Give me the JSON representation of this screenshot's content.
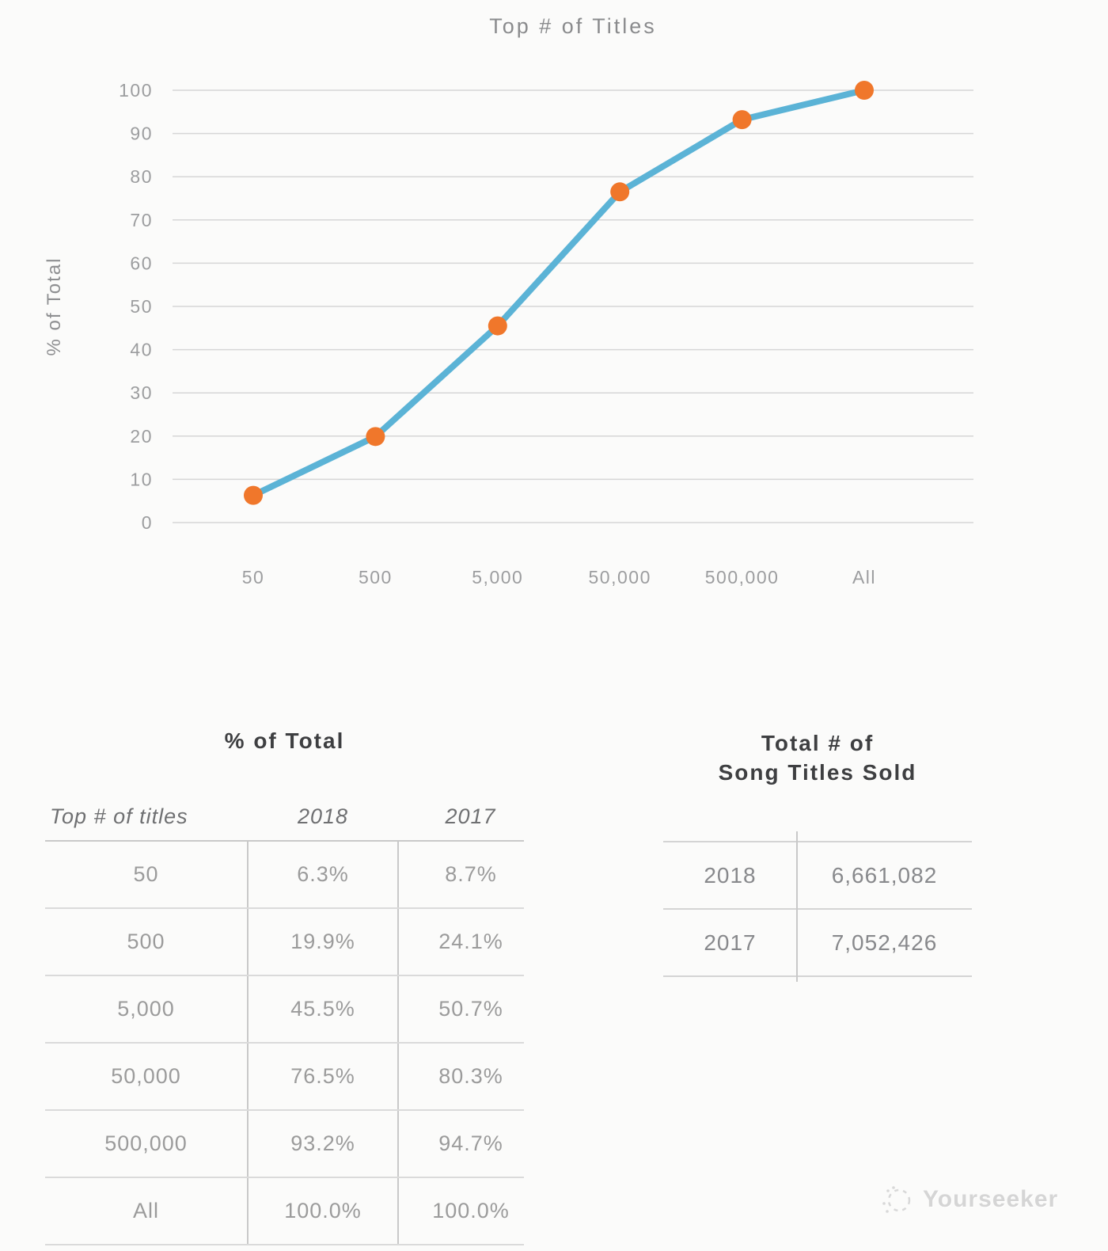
{
  "chart_data": {
    "type": "line",
    "title": "Top # of Titles",
    "categories": [
      "50",
      "500",
      "5,000",
      "50,000",
      "500,000",
      "All"
    ],
    "series": [
      {
        "name": "2018",
        "values": [
          6.3,
          19.9,
          45.5,
          76.5,
          93.2,
          100.0
        ]
      }
    ],
    "xlabel": "",
    "ylabel": "% of Total",
    "ylim": [
      0,
      100
    ],
    "ytick_step": 10,
    "grid": true,
    "legend_position": "none",
    "line_color": "#5BB3D6",
    "marker_color": "#F0772B",
    "grid_color": "#D6D6D6",
    "tick_color": "#9C9D9F"
  },
  "tables": {
    "pct_of_total": {
      "title": "% of Total",
      "columns": [
        "Top # of titles",
        "2018",
        "2017"
      ],
      "rows": [
        {
          "label": "50",
          "y2018": "6.3%",
          "y2017": "8.7%"
        },
        {
          "label": "500",
          "y2018": "19.9%",
          "y2017": "24.1%"
        },
        {
          "label": "5,000",
          "y2018": "45.5%",
          "y2017": "50.7%"
        },
        {
          "label": "50,000",
          "y2018": "76.5%",
          "y2017": "80.3%"
        },
        {
          "label": "500,000",
          "y2018": "93.2%",
          "y2017": "94.7%"
        },
        {
          "label": "All",
          "y2018": "100.0%",
          "y2017": "100.0%"
        }
      ]
    },
    "total_sold": {
      "title_line1": "Total # of",
      "title_line2": "Song Titles Sold",
      "rows": [
        {
          "label": "2018",
          "value": "6,661,082"
        },
        {
          "label": "2017",
          "value": "7,052,426"
        }
      ]
    }
  },
  "watermark": {
    "text": "Yourseeker"
  }
}
